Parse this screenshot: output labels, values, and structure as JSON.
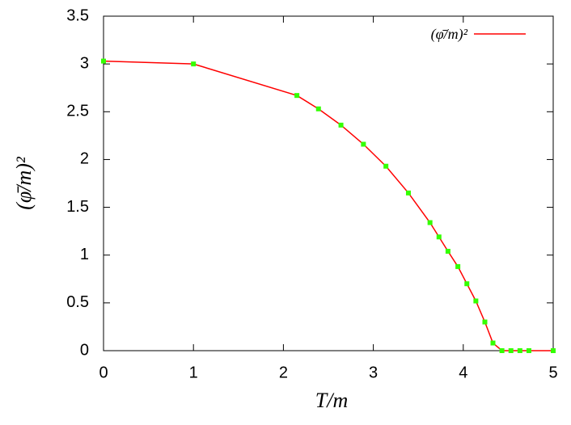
{
  "chart_data": {
    "type": "line",
    "x_label": "T/m",
    "y_label": "(φ̄/m)²",
    "x": [
      0,
      1,
      2.15,
      2.39,
      2.64,
      2.89,
      3.14,
      3.39,
      3.63,
      3.73,
      3.83,
      3.94,
      4.04,
      4.14,
      4.24,
      4.33,
      4.43,
      4.53,
      4.63,
      4.73,
      5
    ],
    "series": [
      {
        "name": "(φ̄/m)²",
        "color": "#ff0000",
        "marker_color": "#33ff00",
        "values": [
          3.03,
          3.0,
          2.67,
          2.53,
          2.36,
          2.16,
          1.93,
          1.65,
          1.34,
          1.19,
          1.04,
          0.88,
          0.7,
          0.52,
          0.3,
          0.08,
          0,
          0,
          0,
          0,
          0
        ]
      }
    ],
    "xlim": [
      0,
      5
    ],
    "xticks": [
      0,
      1,
      2,
      3,
      4,
      5
    ],
    "ylim": [
      0,
      3.5
    ],
    "yticks": [
      0,
      0.5,
      1,
      1.5,
      2,
      2.5,
      3,
      3.5
    ],
    "legend": "upper right"
  }
}
